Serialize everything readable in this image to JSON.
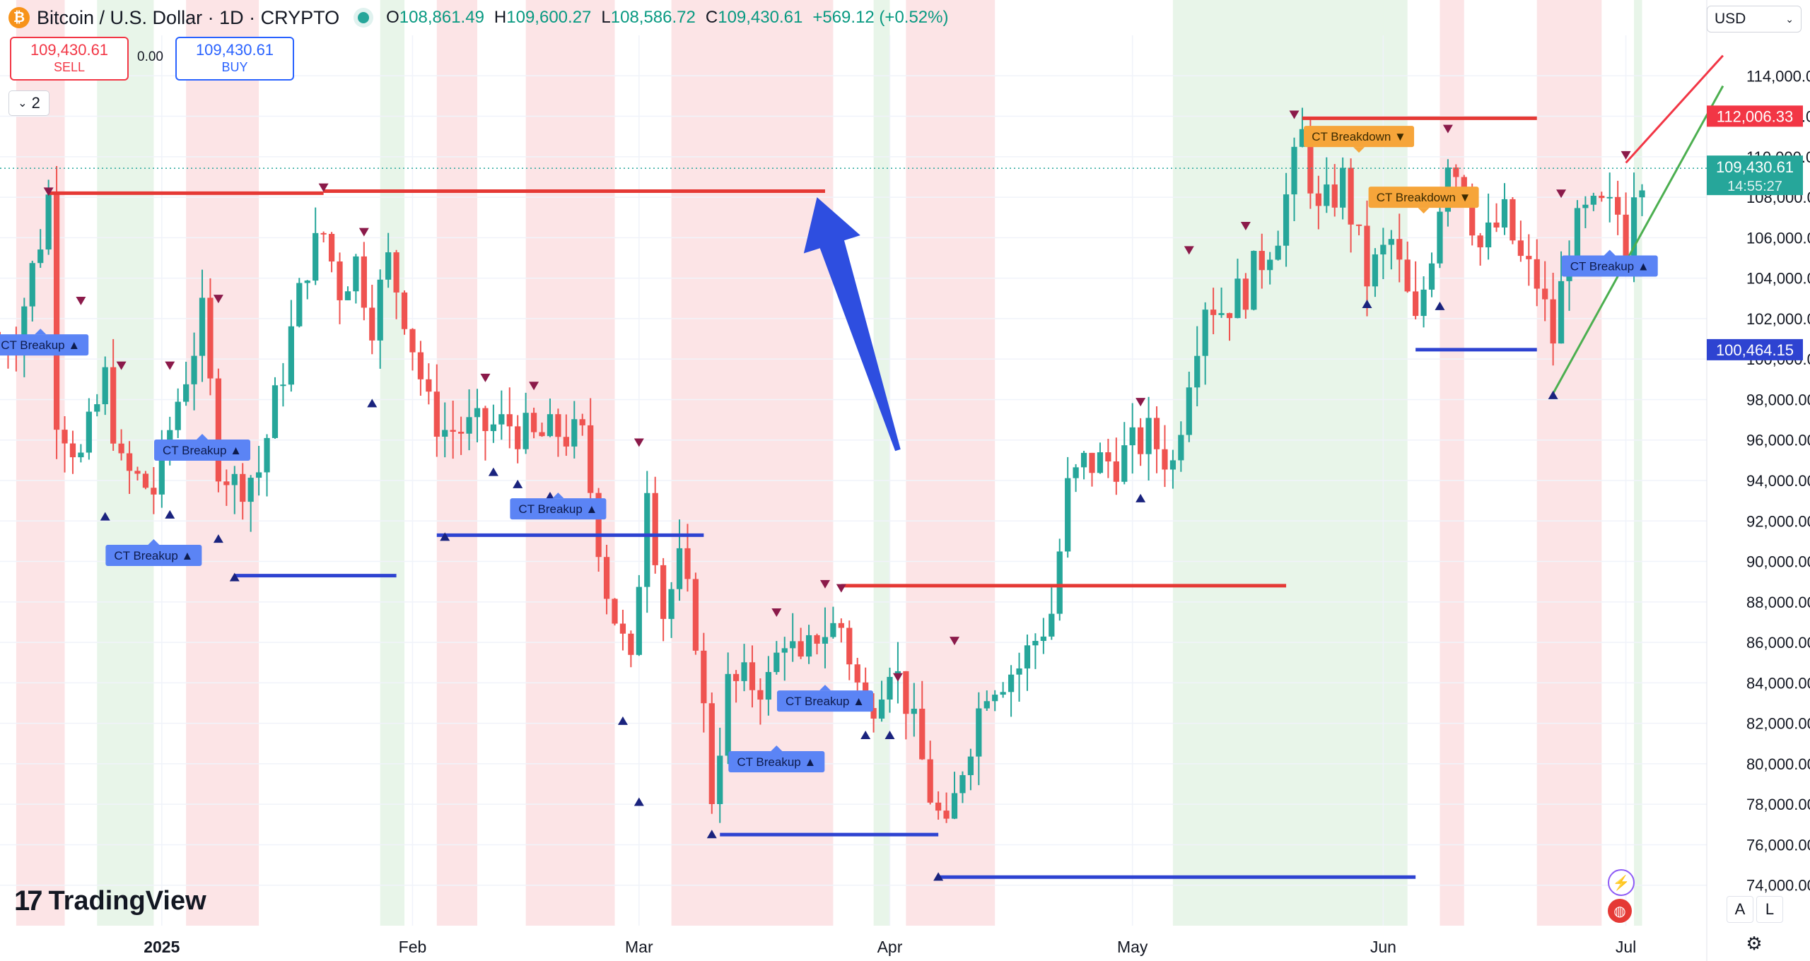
{
  "header": {
    "coin_icon": "bitcoin-icon",
    "symbol": "Bitcoin / U.S. Dollar · 1D · CRYPTO",
    "open_label": "O",
    "open": "108,861.49",
    "high_label": "H",
    "high": "109,600.27",
    "low_label": "L",
    "low": "108,586.72",
    "close_label": "C",
    "close": "109,430.61",
    "change": "+569.12 (+0.52%)"
  },
  "trade": {
    "sell_price": "109,430.61",
    "sell_label": "SELL",
    "spread": "0.00",
    "buy_price": "109,430.61",
    "buy_label": "BUY"
  },
  "indicators": {
    "count": "2"
  },
  "currency": {
    "label": "USD"
  },
  "branding": {
    "logo_text": "TradingView",
    "logo_mark": "17"
  },
  "controls": {
    "auto_label": "A",
    "log_label": "L"
  },
  "colors": {
    "up": "#26a69a",
    "down": "#ef5350",
    "resistance": "#e53935",
    "support": "#2e43d1",
    "breakdown": "#f6a53a",
    "breakup": "#5b84f5",
    "green_zone": "#e8f5e9",
    "red_zone": "#fce4e6"
  },
  "chart_data": {
    "type": "candlestick",
    "title": "Bitcoin / U.S. Dollar · 1D · CRYPTO",
    "y_axis": {
      "ticks": [
        74000,
        76000,
        78000,
        80000,
        82000,
        84000,
        86000,
        88000,
        90000,
        92000,
        94000,
        96000,
        98000,
        100000,
        102000,
        104000,
        106000,
        108000,
        110000,
        112000,
        114000
      ],
      "tick_labels": [
        "74,000.00",
        "76,000.00",
        "78,000.00",
        "80,000.00",
        "82,000.00",
        "84,000.00",
        "86,000.00",
        "88,000.00",
        "90,000.00",
        "92,000.00",
        "94,000.00",
        "96,000.00",
        "98,000.00",
        "100,000.00",
        "102,000.00",
        "104,000.00",
        "106,000.00",
        "108,000.00",
        "110,000.00",
        "112,000.00",
        "114,000.00"
      ],
      "range": [
        72000,
        116000
      ]
    },
    "x_axis": {
      "range": [
        "2024-12-12",
        "2025-07-11"
      ],
      "ticks": [
        {
          "date": "2025-01-01",
          "label": "2025",
          "bold": true
        },
        {
          "date": "2025-02-01",
          "label": "Feb"
        },
        {
          "date": "2025-03-01",
          "label": "Mar"
        },
        {
          "date": "2025-04-01",
          "label": "Apr"
        },
        {
          "date": "2025-05-01",
          "label": "May"
        },
        {
          "date": "2025-06-01",
          "label": "Jun"
        },
        {
          "date": "2025-07-01",
          "label": "Jul"
        }
      ]
    },
    "last_price": {
      "value": 109430.61,
      "label": "109,430.61",
      "countdown": "14:55:27"
    },
    "price_tags": [
      {
        "value": 112006.33,
        "label": "112,006.33",
        "color": "#f23645"
      },
      {
        "value": 100464.15,
        "label": "100,464.15",
        "color": "#2e43d1"
      }
    ],
    "close_path": [
      [
        "2024-12-12",
        100500
      ],
      [
        "2024-12-14",
        101200
      ],
      [
        "2024-12-17",
        106000
      ],
      [
        "2024-12-18",
        108000
      ],
      [
        "2024-12-19",
        97500
      ],
      [
        "2024-12-22",
        95000
      ],
      [
        "2024-12-25",
        99000
      ],
      [
        "2024-12-27",
        94500
      ],
      [
        "2024-12-31",
        93500
      ],
      [
        "2025-01-03",
        98000
      ],
      [
        "2025-01-06",
        102000
      ],
      [
        "2025-01-08",
        95000
      ],
      [
        "2025-01-10",
        93800
      ],
      [
        "2025-01-13",
        94500
      ],
      [
        "2025-01-16",
        99500
      ],
      [
        "2025-01-19",
        104800
      ],
      [
        "2025-01-21",
        106200
      ],
      [
        "2025-01-23",
        103500
      ],
      [
        "2025-01-25",
        104800
      ],
      [
        "2025-01-27",
        102000
      ],
      [
        "2025-01-29",
        104800
      ],
      [
        "2025-01-31",
        102400
      ],
      [
        "2025-02-03",
        97500
      ],
      [
        "2025-02-05",
        96500
      ],
      [
        "2025-02-09",
        96500
      ],
      [
        "2025-02-13",
        96800
      ],
      [
        "2025-02-16",
        96000
      ],
      [
        "2025-02-19",
        96400
      ],
      [
        "2025-02-22",
        96000
      ],
      [
        "2025-02-25",
        88700
      ],
      [
        "2025-02-28",
        84500
      ],
      [
        "2025-03-02",
        94200
      ],
      [
        "2025-03-04",
        87500
      ],
      [
        "2025-03-06",
        89800
      ],
      [
        "2025-03-08",
        86500
      ],
      [
        "2025-03-10",
        78500
      ],
      [
        "2025-03-12",
        83800
      ],
      [
        "2025-03-14",
        84000
      ],
      [
        "2025-03-17",
        84000
      ],
      [
        "2025-03-19",
        86500
      ],
      [
        "2025-03-21",
        84500
      ],
      [
        "2025-03-23",
        86500
      ],
      [
        "2025-03-26",
        86800
      ],
      [
        "2025-03-29",
        82400
      ],
      [
        "2025-04-01",
        85200
      ],
      [
        "2025-04-03",
        83200
      ],
      [
        "2025-04-06",
        78500
      ],
      [
        "2025-04-08",
        76300
      ],
      [
        "2025-04-10",
        80000
      ],
      [
        "2025-04-13",
        84000
      ],
      [
        "2025-04-17",
        84800
      ],
      [
        "2025-04-21",
        87500
      ],
      [
        "2025-04-23",
        93500
      ],
      [
        "2025-04-25",
        94800
      ],
      [
        "2025-04-29",
        95000
      ],
      [
        "2025-05-03",
        96200
      ],
      [
        "2025-05-06",
        94800
      ],
      [
        "2025-05-08",
        99500
      ],
      [
        "2025-05-10",
        103000
      ],
      [
        "2025-05-12",
        102500
      ],
      [
        "2025-05-15",
        103500
      ],
      [
        "2025-05-19",
        106500
      ],
      [
        "2025-05-21",
        109500
      ],
      [
        "2025-05-22",
        111000
      ],
      [
        "2025-05-24",
        107000
      ],
      [
        "2025-05-27",
        108800
      ],
      [
        "2025-05-30",
        104000
      ],
      [
        "2025-06-02",
        105800
      ],
      [
        "2025-06-05",
        101500
      ],
      [
        "2025-06-07",
        105500
      ],
      [
        "2025-06-09",
        110200
      ],
      [
        "2025-06-11",
        108500
      ],
      [
        "2025-06-13",
        105500
      ],
      [
        "2025-06-16",
        107000
      ],
      [
        "2025-06-18",
        104800
      ],
      [
        "2025-06-20",
        103800
      ],
      [
        "2025-06-22",
        101000
      ],
      [
        "2025-06-24",
        105800
      ],
      [
        "2025-06-26",
        107000
      ],
      [
        "2025-06-28",
        107300
      ],
      [
        "2025-06-30",
        107200
      ],
      [
        "2025-07-01",
        105700
      ],
      [
        "2025-07-02",
        108800
      ],
      [
        "2025-07-03",
        109430
      ]
    ],
    "zones": [
      {
        "from": "2024-12-14",
        "to": "2024-12-20",
        "color": "red"
      },
      {
        "from": "2024-12-24",
        "to": "2024-12-31",
        "color": "green"
      },
      {
        "from": "2025-01-04",
        "to": "2025-01-13",
        "color": "red"
      },
      {
        "from": "2025-01-28",
        "to": "2025-01-31",
        "color": "green"
      },
      {
        "from": "2025-02-04",
        "to": "2025-02-09",
        "color": "red"
      },
      {
        "from": "2025-02-15",
        "to": "2025-02-26",
        "color": "red"
      },
      {
        "from": "2025-03-05",
        "to": "2025-03-25",
        "color": "red"
      },
      {
        "from": "2025-03-30",
        "to": "2025-04-01",
        "color": "green"
      },
      {
        "from": "2025-04-03",
        "to": "2025-04-14",
        "color": "red"
      },
      {
        "from": "2025-05-06",
        "to": "2025-06-04",
        "color": "green"
      },
      {
        "from": "2025-06-08",
        "to": "2025-06-11",
        "color": "red"
      },
      {
        "from": "2025-06-20",
        "to": "2025-06-28",
        "color": "red"
      },
      {
        "from": "2025-07-02",
        "to": "2025-07-03",
        "color": "green"
      }
    ],
    "resistance_lines": [
      {
        "from": "2024-12-18",
        "to": "2025-01-21",
        "value": 108200
      },
      {
        "from": "2025-01-21",
        "to": "2025-03-24",
        "value": 108300
      },
      {
        "from": "2025-03-26",
        "to": "2025-05-20",
        "value": 88800
      },
      {
        "from": "2025-05-22",
        "to": "2025-06-20",
        "value": 111900
      }
    ],
    "support_lines": [
      {
        "from": "2025-01-10",
        "to": "2025-01-30",
        "value": 89300
      },
      {
        "from": "2025-02-04",
        "to": "2025-03-09",
        "value": 91300
      },
      {
        "from": "2025-03-11",
        "to": "2025-04-07",
        "value": 76500
      },
      {
        "from": "2025-04-07",
        "to": "2025-06-05",
        "value": 74400
      },
      {
        "from": "2025-06-05",
        "to": "2025-06-20",
        "value": 100464
      }
    ],
    "trend_lines": [
      {
        "color": "red",
        "points": [
          [
            "2025-07-01",
            109700
          ],
          [
            "2025-07-13",
            115000
          ]
        ]
      },
      {
        "color": "green",
        "points": [
          [
            "2025-06-22",
            98300
          ],
          [
            "2025-07-13",
            113500
          ]
        ]
      }
    ],
    "labels": [
      {
        "text": "CT Breakup ▲",
        "date": "2024-12-17",
        "value": 100700,
        "kind": "breakup"
      },
      {
        "text": "CT Breakup ▲",
        "date": "2025-01-06",
        "value": 95500,
        "kind": "breakup"
      },
      {
        "text": "CT Breakup ▲",
        "date": "2024-12-31",
        "value": 90300,
        "kind": "breakup"
      },
      {
        "text": "CT Breakup ▲",
        "date": "2025-02-19",
        "value": 92600,
        "kind": "breakup"
      },
      {
        "text": "CT Breakup ▲",
        "date": "2025-03-24",
        "value": 83100,
        "kind": "breakup"
      },
      {
        "text": "CT Breakup ▲",
        "date": "2025-03-18",
        "value": 80100,
        "kind": "breakup"
      },
      {
        "text": "CT Breakdown ▼",
        "date": "2025-05-29",
        "value": 111000,
        "kind": "breakdown"
      },
      {
        "text": "CT Breakdown ▼",
        "date": "2025-06-06",
        "value": 108000,
        "kind": "breakdown"
      },
      {
        "text": "CT Breakup ▲",
        "date": "2025-06-29",
        "value": 104600,
        "kind": "breakup"
      }
    ],
    "markers_down": [
      [
        "2024-12-18",
        108200
      ],
      [
        "2024-12-22",
        102800
      ],
      [
        "2024-12-27",
        99600
      ],
      [
        "2025-01-02",
        99600
      ],
      [
        "2025-01-08",
        102900
      ],
      [
        "2025-01-21",
        108400
      ],
      [
        "2025-01-26",
        106200
      ],
      [
        "2025-02-10",
        99000
      ],
      [
        "2025-02-16",
        98600
      ],
      [
        "2025-03-01",
        95800
      ],
      [
        "2025-03-18",
        87400
      ],
      [
        "2025-03-24",
        88800
      ],
      [
        "2025-03-26",
        88600
      ],
      [
        "2025-04-02",
        84200
      ],
      [
        "2025-04-09",
        86000
      ],
      [
        "2025-05-02",
        97800
      ],
      [
        "2025-05-08",
        105300
      ],
      [
        "2025-05-15",
        106500
      ],
      [
        "2025-05-21",
        112000
      ],
      [
        "2025-06-09",
        111300
      ],
      [
        "2025-06-23",
        108100
      ],
      [
        "2025-07-01",
        110000
      ]
    ],
    "markers_up": [
      [
        "2024-12-25",
        92300
      ],
      [
        "2025-01-02",
        92400
      ],
      [
        "2025-01-08",
        91200
      ],
      [
        "2025-01-10",
        89300
      ],
      [
        "2025-01-27",
        97900
      ],
      [
        "2025-02-05",
        91300
      ],
      [
        "2025-02-11",
        94500
      ],
      [
        "2025-02-14",
        93900
      ],
      [
        "2025-02-18",
        93300
      ],
      [
        "2025-02-27",
        82200
      ],
      [
        "2025-03-01",
        78200
      ],
      [
        "2025-03-10",
        76600
      ],
      [
        "2025-03-29",
        81500
      ],
      [
        "2025-04-01",
        81500
      ],
      [
        "2025-04-07",
        74500
      ],
      [
        "2025-05-02",
        93200
      ],
      [
        "2025-05-30",
        102800
      ],
      [
        "2025-06-08",
        102700
      ],
      [
        "2025-06-22",
        98300
      ]
    ],
    "arrow": {
      "from": [
        "2025-04-02",
        95500
      ],
      "to": [
        "2025-03-23",
        108000
      ],
      "color": "#2e4ee0"
    }
  }
}
